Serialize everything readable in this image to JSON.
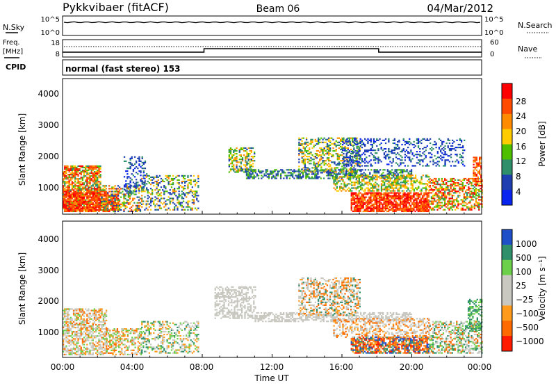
{
  "header": {
    "station": "Pykkvibaer (fitACF)",
    "beam": "Beam 06",
    "date": "04/Mar/2012"
  },
  "nsky_panel": {
    "left_label": "N.Sky",
    "left_ticks": [
      "10^5",
      "10^0"
    ],
    "right_ticks": [
      "10^5",
      "10^0"
    ],
    "right_label": "N.Search"
  },
  "freq_panel": {
    "left_label_1": "Freq.",
    "left_label_2": "[MHz]",
    "left_ticks": [
      "18",
      "8"
    ],
    "right_ticks": [
      "60",
      "0"
    ],
    "right_label": "Nave",
    "cpid_label": "CPID",
    "mode_text": "normal (fast stereo) 153"
  },
  "chart_data": [
    {
      "type": "heatmap",
      "name": "power",
      "ylabel": "Slant Range [km]",
      "ylim": [
        180,
        4500
      ],
      "yticks": [
        "4000",
        "3000",
        "2000",
        "1000"
      ],
      "xlabel": "Time UT",
      "xticks": [
        "00:00",
        "04:00",
        "08:00",
        "12:00",
        "16:00",
        "20:00",
        "00:00"
      ],
      "colorbar": {
        "label": "Power [dB]",
        "ticks": [
          "28",
          "24",
          "20",
          "16",
          "12",
          "8",
          "4"
        ],
        "colors": [
          "#ff0000",
          "#ff4a00",
          "#ff8c00",
          "#ffcc00",
          "#4ec000",
          "#2f8f6a",
          "#1f3fb0",
          "#0a24f0"
        ]
      }
    },
    {
      "type": "heatmap",
      "name": "velocity",
      "ylabel": "Slant Range [km]",
      "ylim": [
        180,
        4500
      ],
      "yticks": [
        "4000",
        "3000",
        "2000",
        "1000"
      ],
      "xlabel": "Time UT",
      "xticks": [
        "00:00",
        "04:00",
        "08:00",
        "12:00",
        "16:00",
        "20:00",
        "00:00"
      ],
      "colorbar": {
        "label": "Velocity [m s⁻¹]",
        "ticks": [
          "1000",
          "500",
          "100",
          "25",
          "−25",
          "−100",
          "−500",
          "−1000"
        ],
        "colors": [
          "#1e4fc8",
          "#2f8f6a",
          "#6cd04a",
          "#c8c8c0",
          "#c8c8c0",
          "#ff9a1a",
          "#ff6a00",
          "#ff1a00"
        ]
      }
    }
  ]
}
